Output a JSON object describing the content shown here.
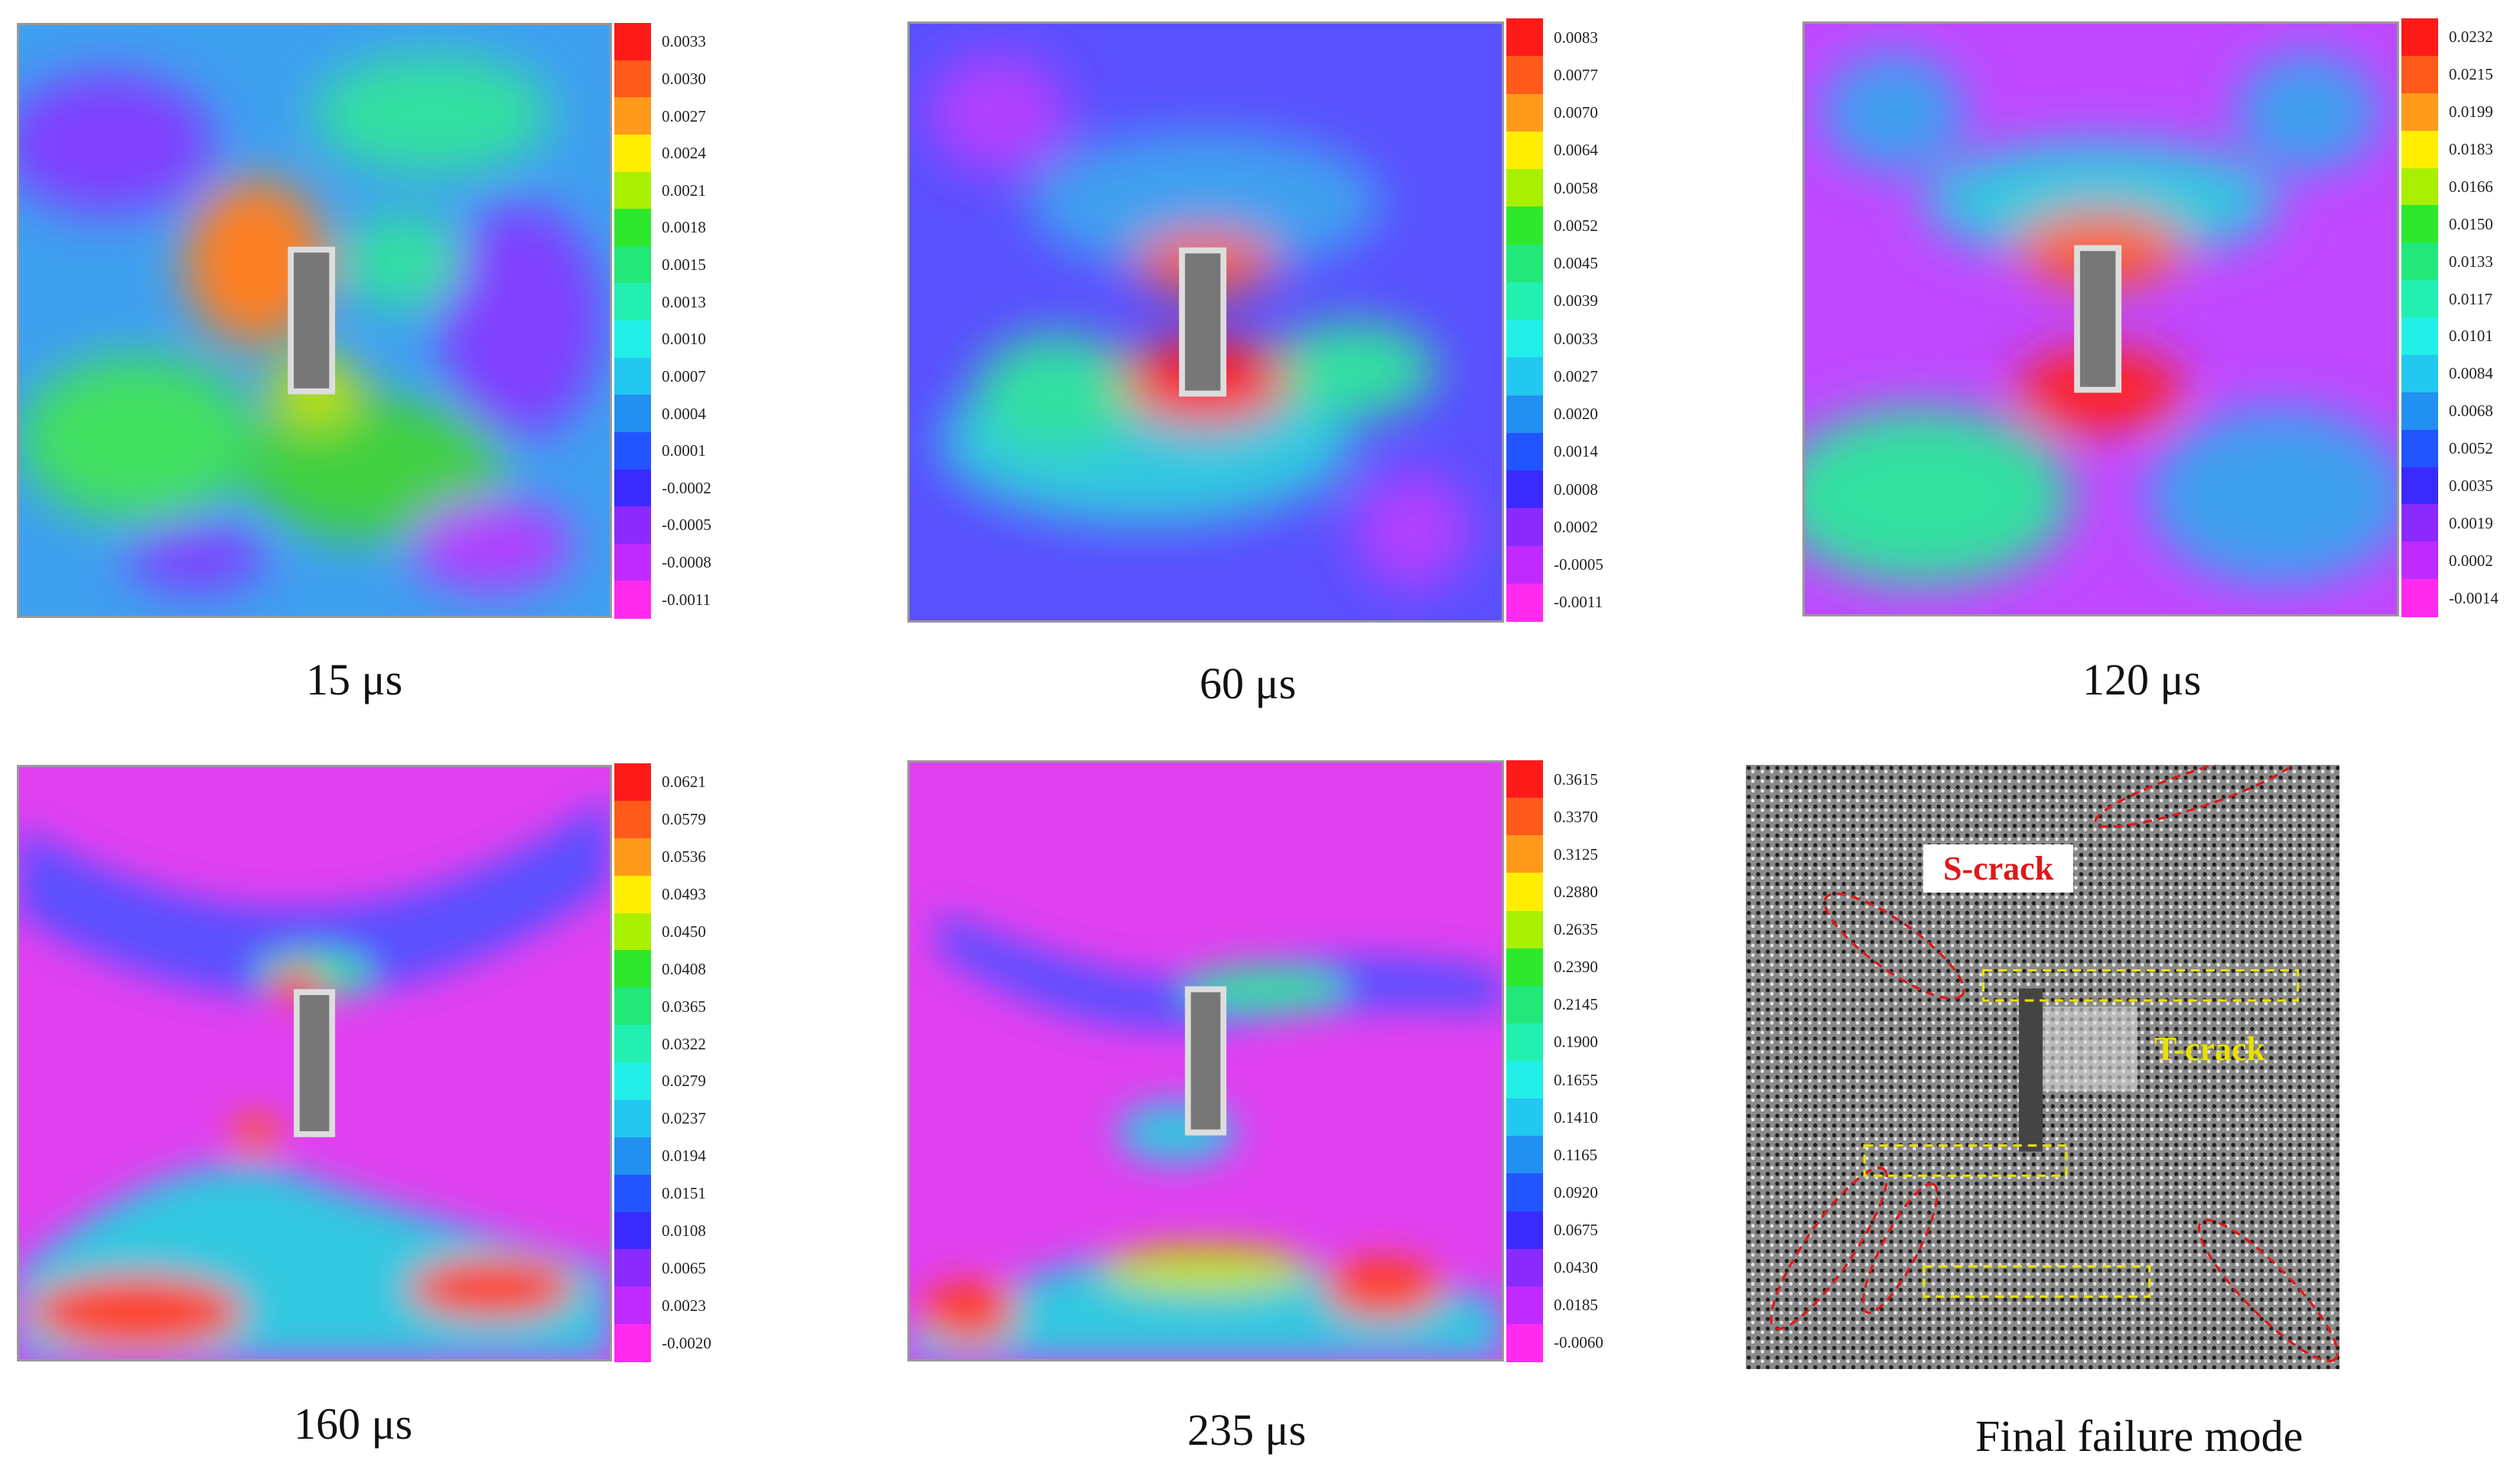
{
  "panels": [
    {
      "caption": "15 μs",
      "ticks": [
        "0.0033",
        "0.0030",
        "0.0027",
        "0.0024",
        "0.0021",
        "0.0018",
        "0.0015",
        "0.0013",
        "0.0010",
        "0.0007",
        "0.0004",
        "0.0001",
        "-0.0002",
        "-0.0005",
        "-0.0008",
        "-0.0011"
      ]
    },
    {
      "caption": "60 μs",
      "ticks": [
        "0.0083",
        "0.0077",
        "0.0070",
        "0.0064",
        "0.0058",
        "0.0052",
        "0.0045",
        "0.0039",
        "0.0033",
        "0.0027",
        "0.0020",
        "0.0014",
        "0.0008",
        "0.0002",
        "-0.0005",
        "-0.0011"
      ]
    },
    {
      "caption": "120 μs",
      "ticks": [
        "0.0232",
        "0.0215",
        "0.0199",
        "0.0183",
        "0.0166",
        "0.0150",
        "0.0133",
        "0.0117",
        "0.0101",
        "0.0084",
        "0.0068",
        "0.0052",
        "0.0035",
        "0.0019",
        "0.0002",
        "-0.0014"
      ]
    },
    {
      "caption": "160 μs",
      "ticks": [
        "0.0621",
        "0.0579",
        "0.0536",
        "0.0493",
        "0.0450",
        "0.0408",
        "0.0365",
        "0.0322",
        "0.0279",
        "0.0237",
        "0.0194",
        "0.0151",
        "0.0108",
        "0.0065",
        "0.0023",
        "-0.0020"
      ]
    },
    {
      "caption": "235 μs",
      "ticks": [
        "0.3615",
        "0.3370",
        "0.3125",
        "0.2880",
        "0.2635",
        "0.2390",
        "0.2145",
        "0.1900",
        "0.1655",
        "0.1410",
        "0.1165",
        "0.0920",
        "0.0675",
        "0.0430",
        "0.0185",
        "-0.0060"
      ]
    }
  ],
  "colorbar_colors": [
    "#ff1a1a",
    "#ff5a1a",
    "#ff9a1a",
    "#ffee00",
    "#a8f000",
    "#2ee82e",
    "#22e87a",
    "#22f0b0",
    "#22f0e8",
    "#22c8f0",
    "#2290f0",
    "#2255ff",
    "#3a2aff",
    "#8a2aff",
    "#c02aff",
    "#ff2aee"
  ],
  "final": {
    "caption": "Final failure mode",
    "s_crack_label": "S-crack",
    "t_crack_label": "T-crack",
    "s_crack_color": "#e01818",
    "t_crack_color": "#e8e000"
  }
}
